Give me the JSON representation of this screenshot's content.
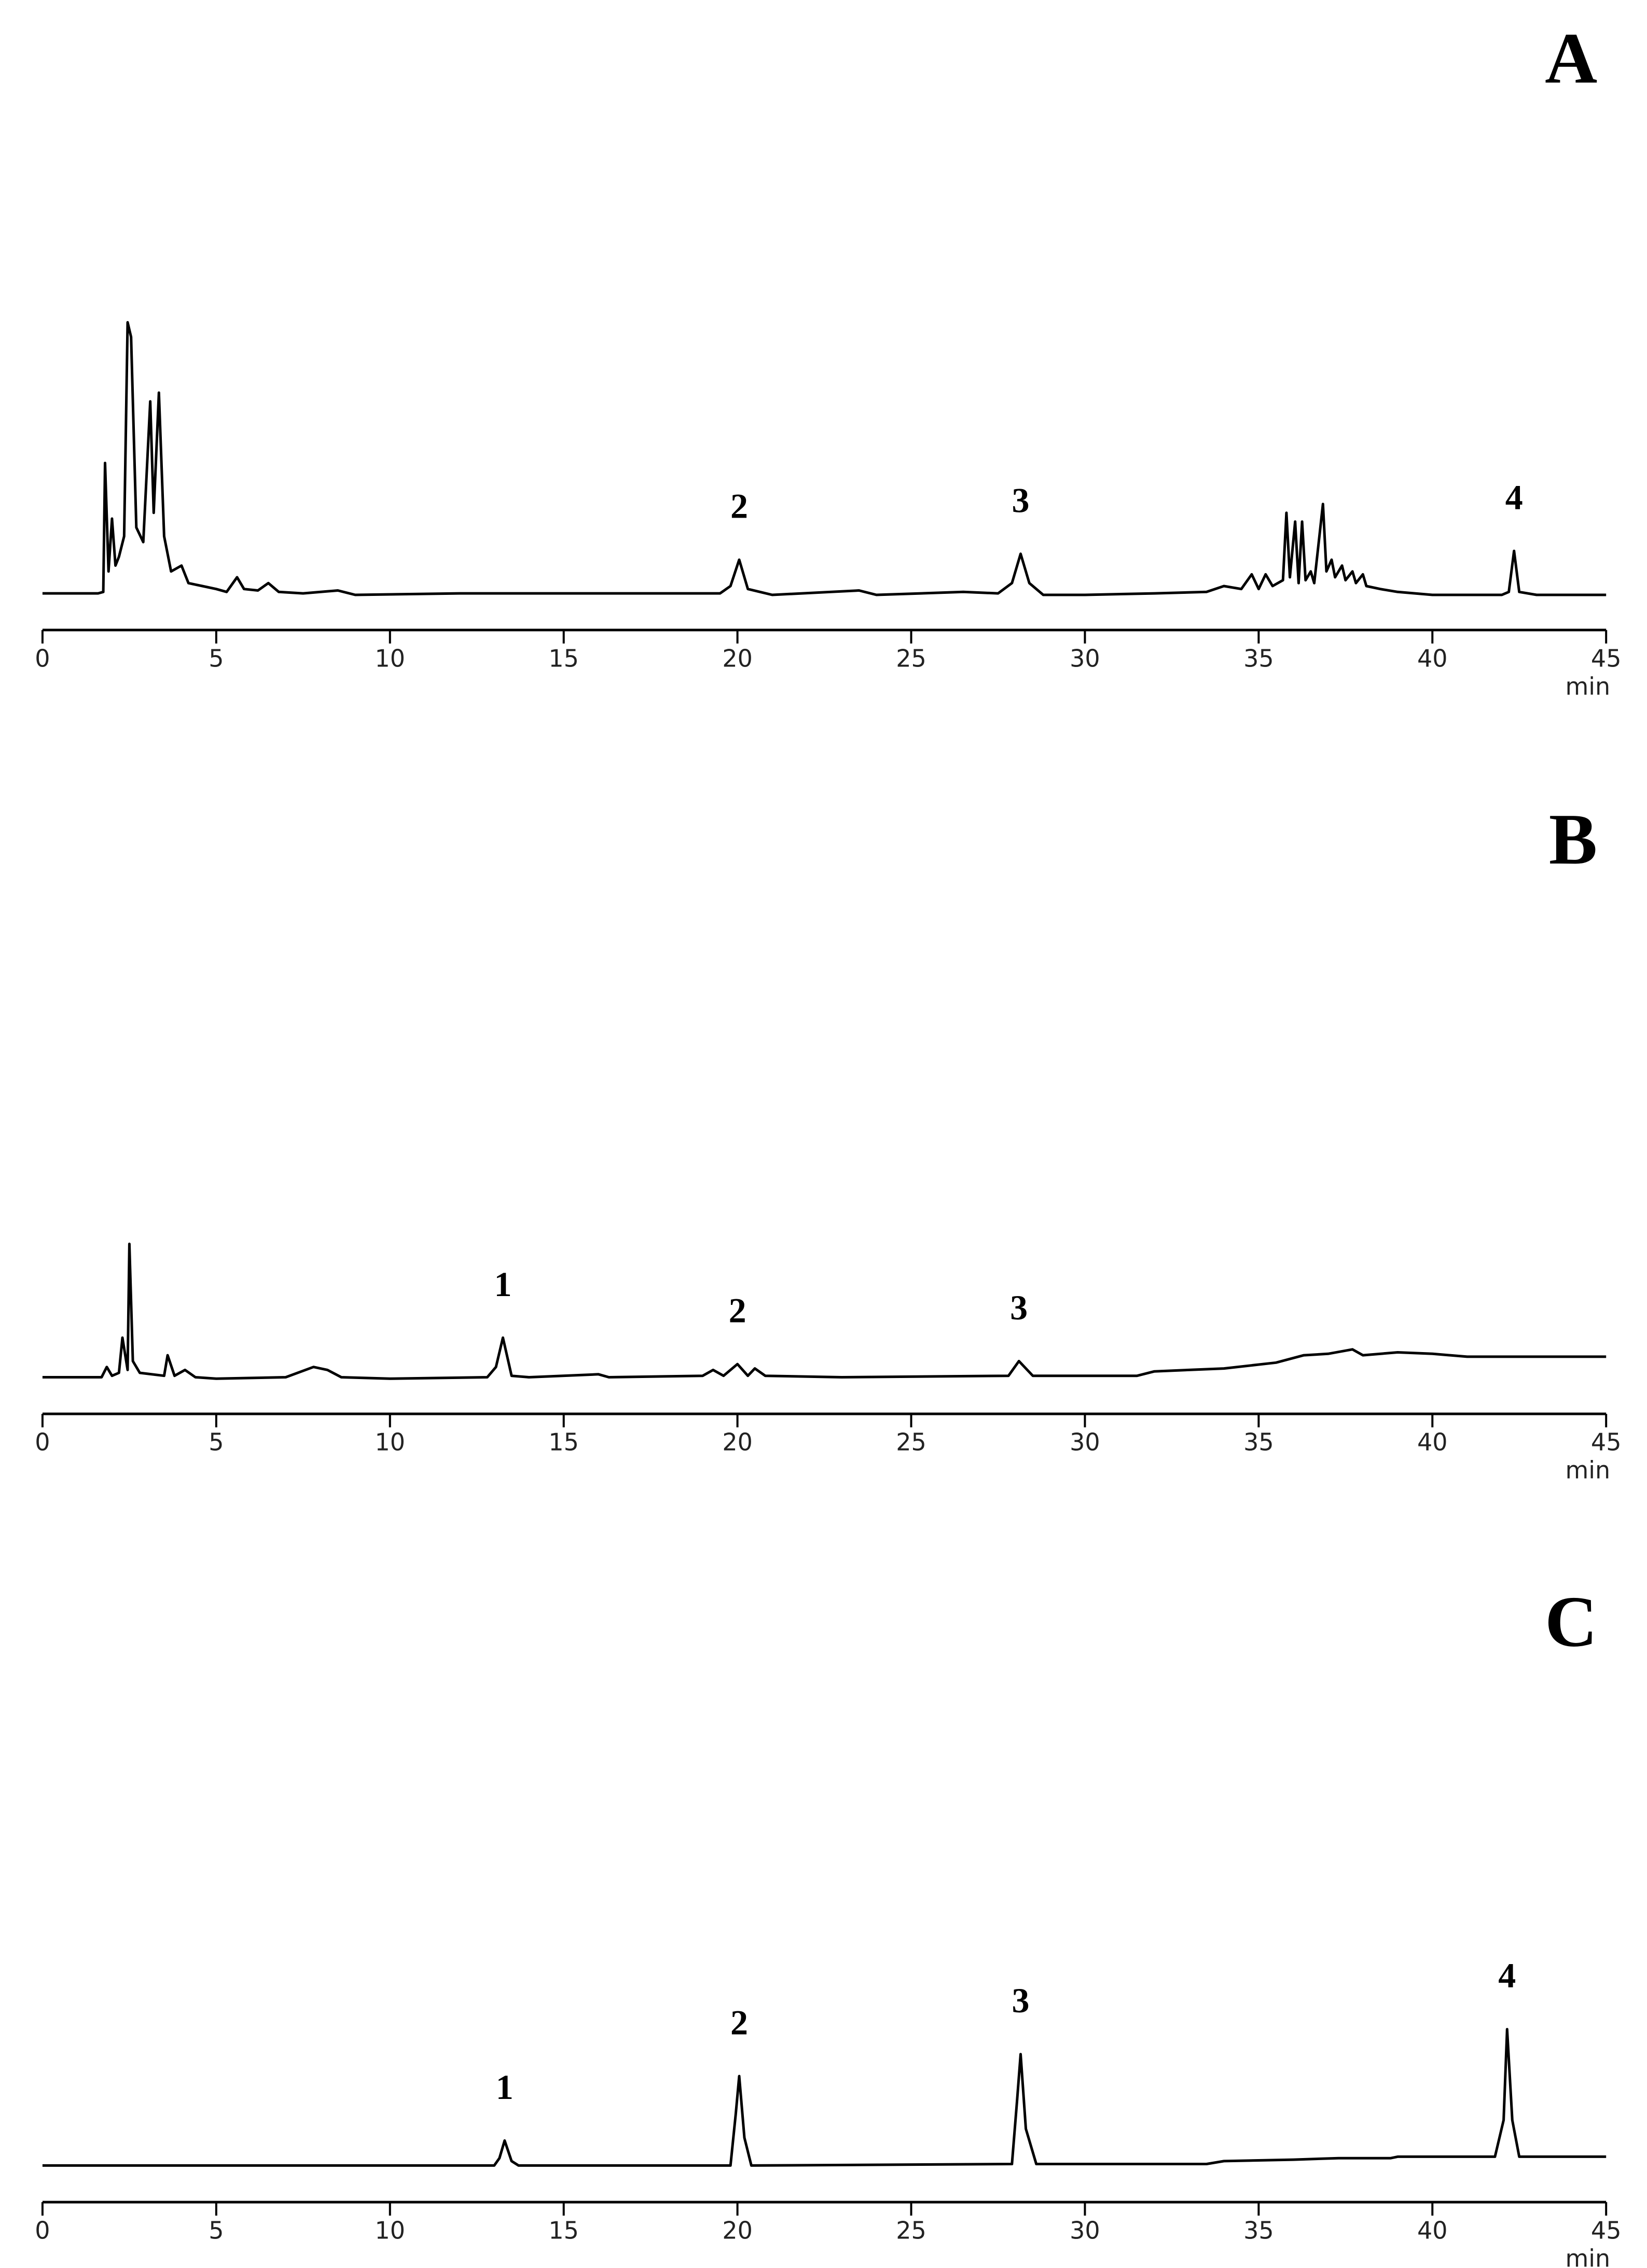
{
  "chart_data": [
    {
      "type": "line",
      "title": "A",
      "xlabel": "min",
      "xlim": [
        0,
        45
      ],
      "ylim": [
        0,
        100
      ],
      "xticks": [
        0,
        5,
        10,
        15,
        20,
        25,
        30,
        35,
        40,
        45
      ],
      "color": "#000000",
      "x": [
        0,
        1.6,
        1.75,
        1.8,
        1.9,
        2.0,
        2.1,
        2.2,
        2.35,
        2.45,
        2.55,
        2.7,
        2.9,
        3.1,
        3.2,
        3.35,
        3.5,
        3.7,
        4.0,
        4.2,
        4.6,
        5.0,
        5.3,
        5.6,
        5.8,
        6.2,
        6.5,
        6.8,
        7.5,
        8.5,
        9,
        12,
        18,
        19.5,
        19.8,
        20.05,
        20.3,
        21,
        23.5,
        24,
        26.5,
        27.5,
        27.9,
        28.15,
        28.4,
        28.8,
        30,
        32,
        33.5,
        34,
        34.5,
        34.8,
        35,
        35.2,
        35.4,
        35.7,
        35.8,
        35.9,
        36.05,
        36.15,
        36.25,
        36.35,
        36.5,
        36.6,
        36.85,
        36.95,
        37.1,
        37.2,
        37.4,
        37.5,
        37.7,
        37.8,
        38,
        38.1,
        38.5,
        39,
        40,
        41,
        42,
        42.2,
        42.35,
        42.5,
        43,
        45
      ],
      "values": [
        2.5,
        2.5,
        3,
        47,
        10,
        28,
        12,
        15,
        22,
        95,
        90,
        25,
        20,
        68,
        30,
        71,
        22,
        10,
        12,
        6,
        5,
        4,
        3,
        8,
        4,
        3.5,
        6,
        3,
        2.5,
        3.5,
        2,
        2.5,
        2.5,
        2.5,
        5,
        14,
        4,
        2,
        3.5,
        2,
        3,
        2.5,
        6,
        16,
        6,
        2,
        2,
        2.5,
        3,
        5,
        4,
        9,
        4,
        9,
        5,
        7,
        30,
        8,
        27,
        6,
        27,
        7,
        10,
        6,
        33,
        10,
        14,
        8,
        12,
        7,
        10,
        6,
        9,
        5,
        4,
        3,
        2,
        2,
        2,
        3,
        17,
        3,
        2,
        2
      ],
      "annotations": [
        {
          "text": "2",
          "x": 20.05
        },
        {
          "text": "3",
          "x": 28.15
        },
        {
          "text": "4",
          "x": 42.35
        }
      ]
    },
    {
      "type": "line",
      "title": "B",
      "xlabel": "min",
      "xlim": [
        0,
        45
      ],
      "ylim": [
        0,
        100
      ],
      "xticks": [
        0,
        5,
        10,
        15,
        20,
        25,
        30,
        35,
        40,
        45
      ],
      "color": "#000000",
      "x": [
        0,
        1.7,
        1.85,
        2.0,
        2.2,
        2.3,
        2.45,
        2.5,
        2.6,
        2.8,
        3.5,
        3.6,
        3.8,
        4.1,
        4.4,
        5,
        7,
        7.8,
        8.2,
        8.6,
        10,
        12.8,
        13.05,
        13.25,
        13.5,
        14,
        16,
        16.3,
        19,
        19.3,
        19.6,
        20,
        20.3,
        20.5,
        20.8,
        23,
        27.8,
        28.1,
        28.5,
        31.5,
        32,
        34,
        35.5,
        36.3,
        37,
        37.7,
        38,
        39,
        40,
        41,
        45
      ],
      "values": [
        2.5,
        2.5,
        6,
        3,
        4,
        16,
        5,
        48,
        8,
        4,
        3,
        10,
        3,
        5,
        2.5,
        2,
        2.5,
        6,
        5,
        2.5,
        2,
        2.5,
        6,
        16,
        3,
        2.5,
        3.5,
        2.5,
        3,
        5,
        3,
        7,
        3,
        5.5,
        3,
        2.5,
        3,
        8,
        3,
        3,
        4.5,
        5.5,
        7.5,
        10,
        10.5,
        12,
        10,
        11,
        10.5,
        9.5,
        9.5
      ],
      "annotations": [
        {
          "text": "1",
          "x": 13.25
        },
        {
          "text": "2",
          "x": 20
        },
        {
          "text": "3",
          "x": 28.1
        }
      ]
    },
    {
      "type": "line",
      "title": "C",
      "xlabel": "min",
      "xlim": [
        0,
        45
      ],
      "ylim": [
        0,
        100
      ],
      "xticks": [
        0,
        5,
        10,
        15,
        20,
        25,
        30,
        35,
        40,
        45
      ],
      "color": "#000000",
      "x": [
        0,
        13,
        13.15,
        13.3,
        13.5,
        13.7,
        19.8,
        19.95,
        20.05,
        20.2,
        20.4,
        27.9,
        28.05,
        28.15,
        28.3,
        28.6,
        33.5,
        34,
        36,
        37.3,
        38,
        38.8,
        39,
        41.8,
        42.05,
        42.15,
        42.3,
        42.5,
        45
      ],
      "values": [
        2.5,
        2.5,
        5,
        11,
        4,
        2.5,
        2.5,
        20,
        33,
        12,
        2.5,
        3,
        25,
        40.5,
        15,
        3,
        3,
        4,
        4.5,
        5,
        5,
        5,
        5.5,
        5.5,
        18,
        49,
        18,
        5.5,
        5.5
      ],
      "annotations": [
        {
          "text": "1",
          "x": 13.3
        },
        {
          "text": "2",
          "x": 20.05
        },
        {
          "text": "3",
          "x": 28.15
        },
        {
          "text": "4",
          "x": 42.15
        }
      ]
    }
  ]
}
